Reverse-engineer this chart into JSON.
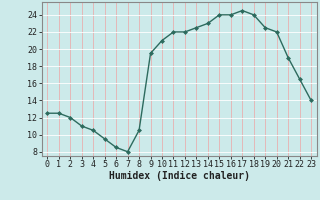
{
  "x": [
    0,
    1,
    2,
    3,
    4,
    5,
    6,
    7,
    8,
    9,
    10,
    11,
    12,
    13,
    14,
    15,
    16,
    17,
    18,
    19,
    20,
    21,
    22,
    23
  ],
  "y": [
    12.5,
    12.5,
    12.0,
    11.0,
    10.5,
    9.5,
    8.5,
    8.0,
    10.5,
    19.5,
    21.0,
    22.0,
    22.0,
    22.5,
    23.0,
    24.0,
    24.0,
    24.5,
    24.0,
    22.5,
    22.0,
    19.0,
    16.5,
    14.0
  ],
  "xlabel": "Humidex (Indice chaleur)",
  "xlim": [
    -0.5,
    23.5
  ],
  "ylim": [
    7.5,
    25.5
  ],
  "yticks": [
    8,
    10,
    12,
    14,
    16,
    18,
    20,
    22,
    24
  ],
  "xticks": [
    0,
    1,
    2,
    3,
    4,
    5,
    6,
    7,
    8,
    9,
    10,
    11,
    12,
    13,
    14,
    15,
    16,
    17,
    18,
    19,
    20,
    21,
    22,
    23
  ],
  "line_color": "#2d6b5e",
  "marker_color": "#2d6b5e",
  "bg_color": "#cceaea",
  "grid_color": "#ffffff",
  "grid_red_color": "#e8b0b0",
  "axis_color": "#888888",
  "tick_label_color": "#222222",
  "xlabel_color": "#222222",
  "xlabel_fontsize": 7.0,
  "tick_fontsize": 6.0
}
